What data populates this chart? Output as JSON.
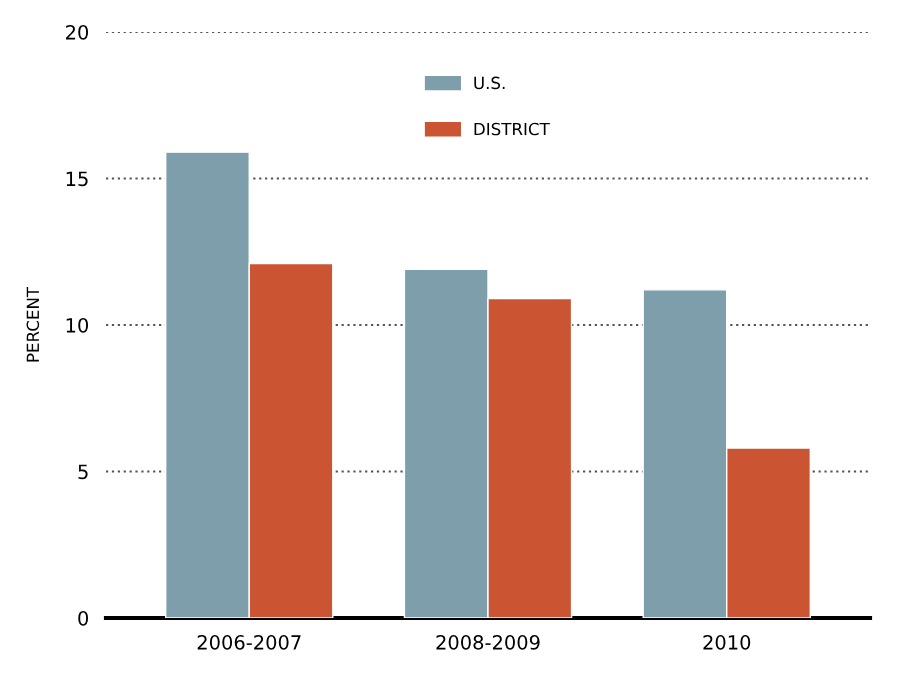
{
  "chart_data": {
    "type": "bar",
    "ylabel": "PERCENT",
    "categories": [
      "2006-2007",
      "2008-2009",
      "2010"
    ],
    "series": [
      {
        "name": "U.S.",
        "color": "#7f9eac",
        "values": [
          15.9,
          11.9,
          11.2
        ]
      },
      {
        "name": "DISTRICT",
        "color": "#cb5432",
        "values": [
          12.1,
          10.9,
          5.8
        ]
      }
    ],
    "ylim": [
      0,
      20
    ],
    "yticks": [
      0,
      5,
      10,
      15,
      20
    ],
    "grid": "y",
    "legend": "top"
  }
}
